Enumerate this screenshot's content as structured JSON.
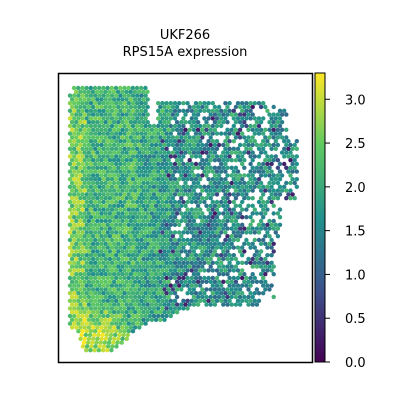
{
  "chart_data": {
    "type": "scatter",
    "subtype": "spatial-transcriptomics-spot-map",
    "title": "UKF266",
    "subtitle": "RPS15A expression",
    "xlabel": "",
    "ylabel": "",
    "axes_ticks_visible": false,
    "grid": false,
    "legend": "none",
    "colorbar": {
      "position": "right",
      "colormap": "viridis",
      "range": [
        0.0,
        3.3
      ],
      "ticks": [
        0.0,
        0.5,
        1.0,
        1.5,
        2.0,
        2.5,
        3.0
      ],
      "tick_labels": [
        "0.0",
        "0.5",
        "1.0",
        "1.5",
        "2.0",
        "2.5",
        "3.0"
      ],
      "colors": [
        "#440154",
        "#3b528b",
        "#21918c",
        "#5ec962",
        "#fde725"
      ]
    },
    "tissue_region_description": {
      "left_band_mean_expression": 2.4,
      "center_mean_expression": 1.9,
      "right_region_mean_expression": 1.5,
      "bottom_left_max_expression": 3.2
    }
  }
}
